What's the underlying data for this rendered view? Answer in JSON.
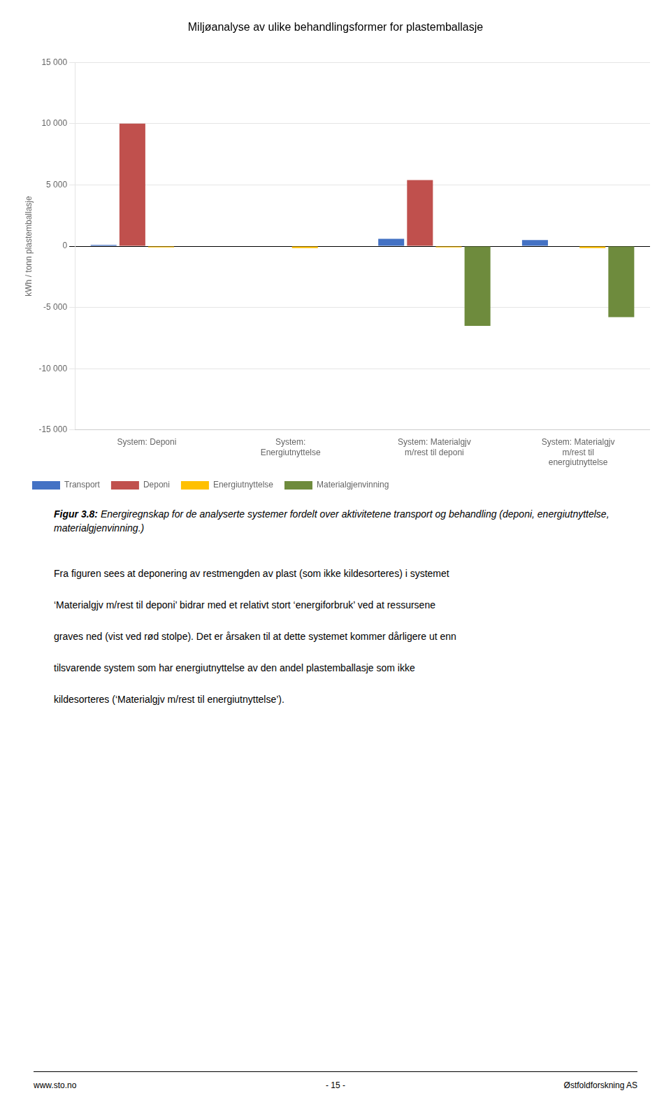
{
  "chart_data": {
    "type": "bar",
    "title": "Miljøanalyse av ulike behandlingsformer for plastemballasje",
    "ylabel": "kWh / tonn plastemballasje",
    "categories": [
      "System: Deponi",
      "System:\nEnergiutnyttelse",
      "System: Materialgjv\nm/rest til deponi",
      "System: Materialgjv\nm/rest til\nenergiutnyttelse"
    ],
    "series": [
      {
        "name": "Transport",
        "color": "#4472C4",
        "values": [
          100,
          0,
          600,
          500
        ]
      },
      {
        "name": "Deponi",
        "color": "#C0504D",
        "values": [
          10000,
          0,
          5400,
          0
        ]
      },
      {
        "name": "Energiutnyttelse",
        "color": "#FFC000",
        "values": [
          -100,
          -150,
          -100,
          -150
        ]
      },
      {
        "name": "Materialgjenvinning",
        "color": "#6E8B3D",
        "values": [
          0,
          0,
          -6500,
          -5800
        ]
      }
    ],
    "ylim": [
      -15000,
      15000
    ],
    "yticks": [
      {
        "value": -15000,
        "label": "-15 000"
      },
      {
        "value": -10000,
        "label": "-10 000"
      },
      {
        "value": -5000,
        "label": "-5 000"
      },
      0,
      {
        "value": 5000,
        "label": "5 000"
      },
      {
        "value": 10000,
        "label": "10 000"
      },
      {
        "value": 15000,
        "label": "15 000"
      }
    ],
    "grid": true,
    "legend": "lower left"
  },
  "figcaption_bold": "Figur 3.8:",
  "figcaption_italic": " Energiregnskap for de analyserte systemer fordelt over aktivitetene transport og behandling (deponi, energiutnyttelse, materialgjenvinning.)",
  "body_lines": [
    "Fra figuren sees at deponering av restmengden av plast (som ikke kildesorteres) i systemet",
    "‘Materialgjv m/rest til deponi’ bidrar med et relativt stort ‘energiforbruk’ ved at ressursene",
    "graves ned (vist ved rød stolpe). Det er årsaken til at dette systemet kommer dårligere ut enn",
    "tilsvarende system som har energiutnyttelse av den andel plastemballasje som ikke",
    "kildesorteres (‘Materialgjv m/rest til energiutnyttelse’)."
  ],
  "footer_left": "www.sto.no",
  "footer_center": "- 15 -",
  "footer_right": "Østfoldforskning AS"
}
